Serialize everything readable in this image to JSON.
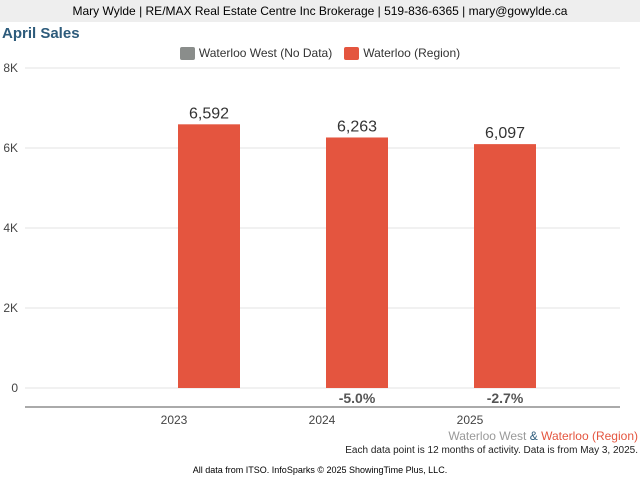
{
  "header": {
    "contact_line": "Mary Wylde | RE/MAX Real Estate Centre Inc Brokerage | 519-836-6365 | mary@gowylde.ca"
  },
  "colors": {
    "bar_region": "#e4553f",
    "no_data": "#8a8d8b",
    "title": "#2d5b7b"
  },
  "chart_data": {
    "type": "bar",
    "title": "April Sales",
    "categories": [
      "2023",
      "2024",
      "2025"
    ],
    "series": [
      {
        "name": "Waterloo West (No Data)",
        "values": [
          null,
          null,
          null
        ]
      },
      {
        "name": "Waterloo (Region)",
        "values": [
          6592,
          6263,
          6097
        ]
      }
    ],
    "data_labels": [
      "6,592",
      "6,263",
      "6,097"
    ],
    "change_labels": [
      "",
      "-5.0%",
      "-2.7%"
    ],
    "ylim": [
      0,
      8000
    ],
    "yticks": [
      0,
      2000,
      4000,
      6000,
      8000
    ],
    "ytick_labels": [
      "0",
      "2K",
      "4K",
      "6K",
      "8K"
    ],
    "xlabel": "",
    "ylabel": "",
    "grid": true,
    "legend_position": "top-center"
  },
  "footer": {
    "series_left": "Waterloo West",
    "series_amp": " & ",
    "series_right": "Waterloo (Region)",
    "note": "Each data point is 12 months of activity. Data is from May 3, 2025.",
    "credit": "All data from ITSO. InfoSparks © 2025 ShowingTime Plus, LLC."
  }
}
